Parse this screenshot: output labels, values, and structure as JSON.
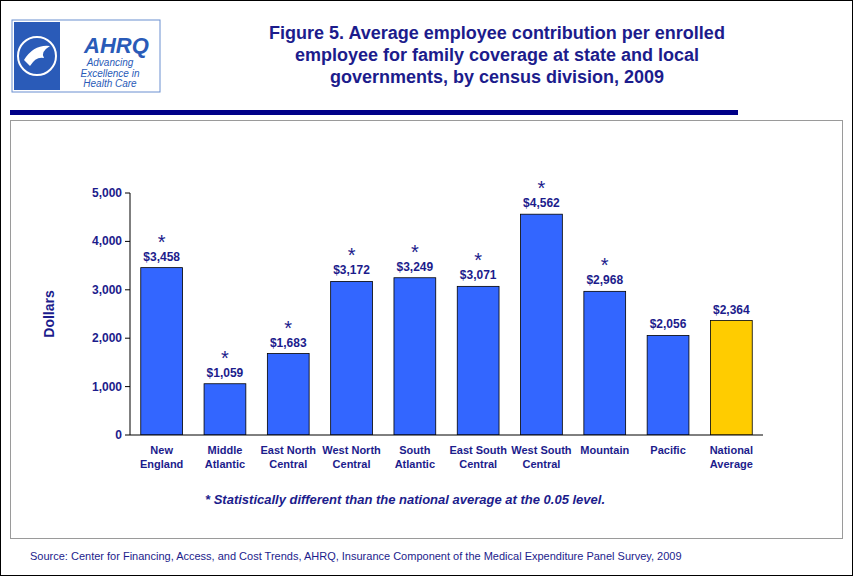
{
  "chart_data": {
    "type": "bar",
    "title": "Figure 5. Average employee contribution per enrolled\nemployee for family coverage at state and local\ngovernments, by census division, 2009",
    "logo_name": "AHRQ",
    "logo_tagline": "Advancing\nExcellence in\nHealth Care",
    "y_label": "Dollars",
    "categories": [
      "New\nEngland",
      "Middle\nAtlantic",
      "East North\nCentral",
      "West North\nCentral",
      "South\nAtlantic",
      "East South\nCentral",
      "West South\nCentral",
      "Mountain",
      "Pacific",
      "National\nAverage"
    ],
    "values": [
      3458,
      1059,
      1683,
      3172,
      3249,
      3071,
      4562,
      2968,
      2056,
      2364
    ],
    "value_labels": [
      "$3,458",
      "$1,059",
      "$1,683",
      "$3,172",
      "$3,249",
      "$3,071",
      "$4,562",
      "$2,968",
      "$2,056",
      "$2,364"
    ],
    "annotations": [
      "*",
      "*",
      "*",
      "*",
      "*",
      "*",
      "*",
      "*",
      null,
      null
    ],
    "colors": [
      "#3366ff",
      "#3366ff",
      "#3366ff",
      "#3366ff",
      "#3366ff",
      "#3366ff",
      "#3366ff",
      "#3366ff",
      "#3366ff",
      "#ffcc00"
    ],
    "data_labels": true,
    "grid": false,
    "ylim": [
      0,
      5000
    ],
    "yticks": [
      0,
      {
        "value": 1000,
        "label": "1,000"
      },
      {
        "value": 2000,
        "label": "2,000"
      },
      {
        "value": 3000,
        "label": "3,000"
      },
      {
        "value": 4000,
        "label": "4,000"
      },
      {
        "value": 5000,
        "label": "5,000"
      }
    ],
    "footnote": "* Statistically different than the national average at the 0.05 level.",
    "source": "Source: Center for Financing, Access, and Cost Trends, AHRQ, Insurance Component of the Medical Expenditure Panel Survey, 2009"
  }
}
